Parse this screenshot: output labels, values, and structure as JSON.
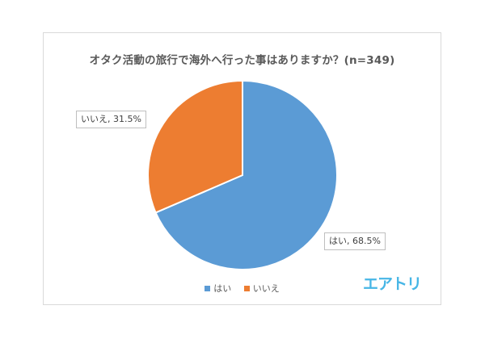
{
  "chart_data": {
    "type": "pie",
    "title": "オタク活動の旅行で海外へ行った事はありますか？(n=349)",
    "slices": [
      {
        "label": "はい",
        "value": 68.5,
        "data_label": "はい, 68.5%",
        "color": "#5b9bd5"
      },
      {
        "label": "いいえ",
        "value": 31.5,
        "data_label": "いいえ, 31.5%",
        "color": "#ed7d31"
      }
    ],
    "legend_placement": "bottom",
    "start_angle": "12 o'clock, clockwise"
  },
  "legend": {
    "items": [
      {
        "label": "はい",
        "color": "#5b9bd5"
      },
      {
        "label": "いいえ",
        "color": "#ed7d31"
      }
    ]
  },
  "brand": {
    "name": "エアトリ",
    "color": "#47b6e6"
  }
}
